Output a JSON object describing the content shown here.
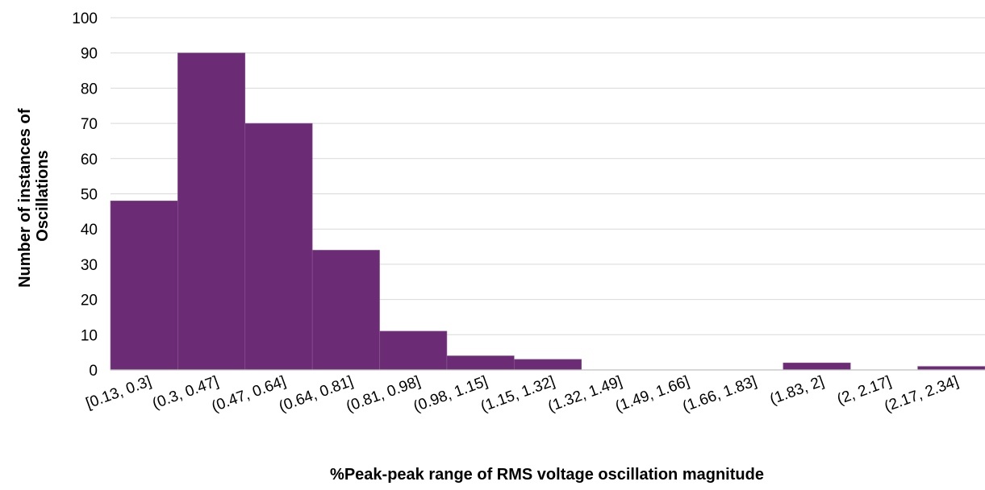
{
  "chart_data": {
    "type": "bar",
    "title": "",
    "xlabel": "%Peak-peak range of RMS voltage oscillation magnitude",
    "ylabel_lines": [
      "Number of instances of",
      "Oscillations"
    ],
    "categories": [
      "[0.13, 0.3]",
      "(0.3, 0.47]",
      "(0.47, 0.64]",
      "(0.64, 0.81]",
      "(0.81, 0.98]",
      "(0.98, 1.15]",
      "(1.15, 1.32]",
      "(1.32, 1.49]",
      "(1.49, 1.66]",
      "(1.66, 1.83]",
      "(1.83, 2]",
      "(2, 2.17]",
      "(2.17, 2.34]"
    ],
    "values": [
      48,
      90,
      70,
      34,
      11,
      4,
      3,
      0,
      0,
      0,
      2,
      0,
      1
    ],
    "ylim": [
      0,
      100
    ],
    "yticks": [
      0,
      10,
      20,
      30,
      40,
      50,
      60,
      70,
      80,
      90,
      100
    ],
    "grid": true,
    "bar_color": "#6b2c75",
    "grid_color": "#d9d9d9",
    "axis_color": "#bfbfbf"
  }
}
